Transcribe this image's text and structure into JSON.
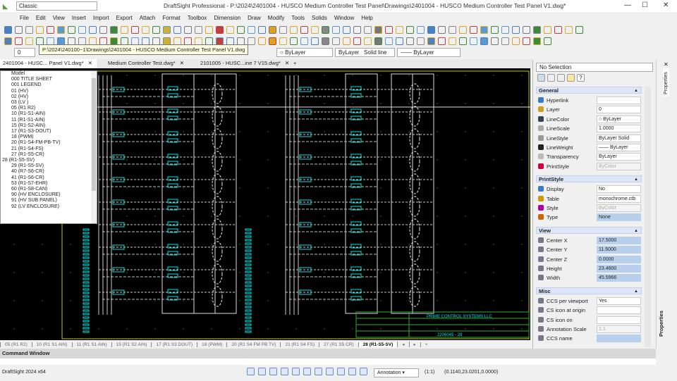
{
  "app": {
    "logo": "DS",
    "workspace": "Classic",
    "title": "DraftSight Professional - P:\\2024\\2401004 - HUSCO Medium Controller Test Panel\\Drawings\\2401004 - HUSCO Medium Controller Test Panel V1.dwg*"
  },
  "menu": [
    "File",
    "Edit",
    "View",
    "Insert",
    "Import",
    "Export",
    "Attach",
    "Format",
    "Toolbox",
    "Dimension",
    "Draw",
    "Modify",
    "Tools",
    "Solids",
    "Window",
    "Help"
  ],
  "layer_row": {
    "layer": "0",
    "color": "ByLayer",
    "linestyle_layer": "ByLayer",
    "linestyle": "Solid line",
    "lineweight": "ByLayer"
  },
  "tooltip": "P:\\2024\\240100~1\\Drawings\\2401004 - HUSCO Medium Controller Test Panel V1.dwg",
  "doc_tabs": [
    {
      "label": "2401004 - HUSC... Panel V1.dwg*"
    },
    {
      "label": "Medium Controller Test.dwg*"
    },
    {
      "label": "2101005 - HUSC...ine 7 V15.dwg*"
    }
  ],
  "sheet_list": {
    "items": [
      "Model",
      "000 TITLE SHEET",
      "001 LEGEND",
      "01 (HV)",
      "02 (HV)",
      "03 (LV )",
      "05 (R1 R2)",
      "10 (R1-S1-AIN)",
      "11 (R1-S1-AIN)",
      "15 (R1-S2-AIN)",
      "17 (R1-S3-DOUT)",
      "18 (PWM)",
      "20 (R1-S4-FM-PB-TV)",
      "21 (R1-S4-FS)",
      "27 (R1-S5-CR)",
      "28 (R1-S5-SV)",
      "29 (R1-S5-SV)",
      "40 (R7-S6-CR)",
      "41 (R1-S6-CR)",
      "53 (R1-S7-EHR)",
      "60 (R1-S8-CAN)",
      "90 (HV ENCLOSURE)",
      "91 (HV SUB PANEL)",
      "92 (LV ENCLOSURE)"
    ],
    "current": "28 (R1-S5-SV)"
  },
  "title_block": {
    "company": "PRIME CONTROL SYSTEMS LLC",
    "drawing_no": "2206045 - 28"
  },
  "layout_tabs": [
    "05 (R1 R2)",
    "10 (R1 S1 AIN)",
    "11 (R1 S1 AIN)",
    "15 (R1 S2 AIN)",
    "17 (R1 S3 DOUT)",
    "18 (PWM)",
    "20 (R1 S4 FM PB TV)",
    "21 (R1 S4 FS)",
    "27 (R1 S5 CR)",
    "28 (R1-S5-SV)"
  ],
  "active_layout": "28 (R1-S5-SV)",
  "command_window": {
    "title": "Command Window"
  },
  "status": {
    "version": "DraftSight 2024 x64",
    "annotation": "Annotation",
    "scale": "(1:1)",
    "coords": "(0.1140,23.0201,0.0000)"
  },
  "properties": {
    "selection": "No Selection",
    "tab_label": "Properties",
    "general": {
      "title": "General",
      "rows": [
        {
          "label": "Hyperlink",
          "value": ""
        },
        {
          "label": "Layer",
          "value": "0"
        },
        {
          "label": "LineColor",
          "value": "○ ByLayer"
        },
        {
          "label": "LineScale",
          "value": "1.0000"
        },
        {
          "label": "LineStyle",
          "value": "ByLayer    Solid"
        },
        {
          "label": "LineWeight",
          "value": "—— ByLayer"
        },
        {
          "label": "Transparency",
          "value": "ByLayer"
        },
        {
          "label": "PrintStyle",
          "value": "ByColor"
        }
      ]
    },
    "printstyle": {
      "title": "PrintStyle",
      "rows": [
        {
          "label": "Display",
          "value": "No"
        },
        {
          "label": "Table",
          "value": "monochrome.ctb"
        },
        {
          "label": "Style",
          "value": "ByColor"
        },
        {
          "label": "Type",
          "value": "None"
        }
      ]
    },
    "view": {
      "title": "View",
      "rows": [
        {
          "label": "Center X",
          "value": "17.5000"
        },
        {
          "label": "Center Y",
          "value": "11.5000"
        },
        {
          "label": "Center Z",
          "value": "0.0000"
        },
        {
          "label": "Height",
          "value": "23.4600"
        },
        {
          "label": "Width",
          "value": "45.5966"
        }
      ]
    },
    "misc": {
      "title": "Misc",
      "rows": [
        {
          "label": "CCS per viewport",
          "value": "Yes"
        },
        {
          "label": "CS icon at origin",
          "value": ""
        },
        {
          "label": "CS icon on",
          "value": ""
        },
        {
          "label": "Annotation Scale",
          "value": "1:1"
        },
        {
          "label": "CCS name",
          "value": ""
        }
      ]
    }
  },
  "colors": {
    "canvas": "#000000",
    "cyan": "#00e5e5",
    "frame": "#c8c820",
    "section": "#dde6f8"
  }
}
